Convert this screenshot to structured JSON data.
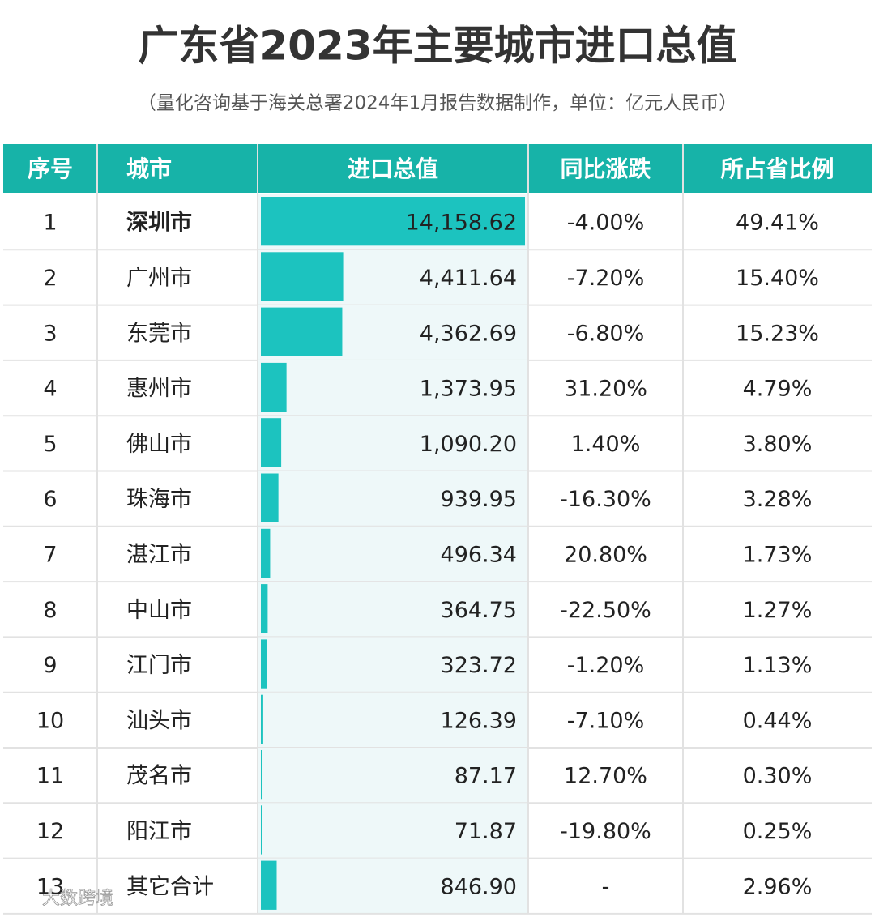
{
  "header": {
    "title": "广东省2023年主要城市进口总值",
    "subtitle": "（量化咨询基于海关总署2024年1月报告数据制作，单位：亿元人民币）"
  },
  "table": {
    "columns": [
      "序号",
      "城市",
      "进口总值",
      "同比涨跌",
      "所占省比例"
    ],
    "rows": [
      [
        "1",
        "深圳市",
        "14,158.62",
        "-4.00%",
        "49.41%"
      ],
      [
        "2",
        "广州市",
        "4,411.64",
        "-7.20%",
        "15.40%"
      ],
      [
        "3",
        "东莞市",
        "4,362.69",
        "-6.80%",
        "15.23%"
      ],
      [
        "4",
        "惠州市",
        "1,373.95",
        "31.20%",
        "4.79%"
      ],
      [
        "5",
        "佛山市",
        "1,090.20",
        "1.40%",
        "3.80%"
      ],
      [
        "6",
        "珠海市",
        "939.95",
        "-16.30%",
        "3.28%"
      ],
      [
        "7",
        "湛江市",
        "496.34",
        "20.80%",
        "1.73%"
      ],
      [
        "8",
        "中山市",
        "364.75",
        "-22.50%",
        "1.27%"
      ],
      [
        "9",
        "江门市",
        "323.72",
        "-1.20%",
        "1.13%"
      ],
      [
        "10",
        "汕头市",
        "126.39",
        "-7.10%",
        "0.44%"
      ],
      [
        "11",
        "茂名市",
        "87.17",
        "12.70%",
        "0.30%"
      ],
      [
        "12",
        "阳江市",
        "71.87",
        "-19.80%",
        "0.25%"
      ],
      [
        "13",
        "其它合计",
        "846.90",
        "-",
        "2.96%"
      ]
    ]
  },
  "watermark": "大数跨境"
}
